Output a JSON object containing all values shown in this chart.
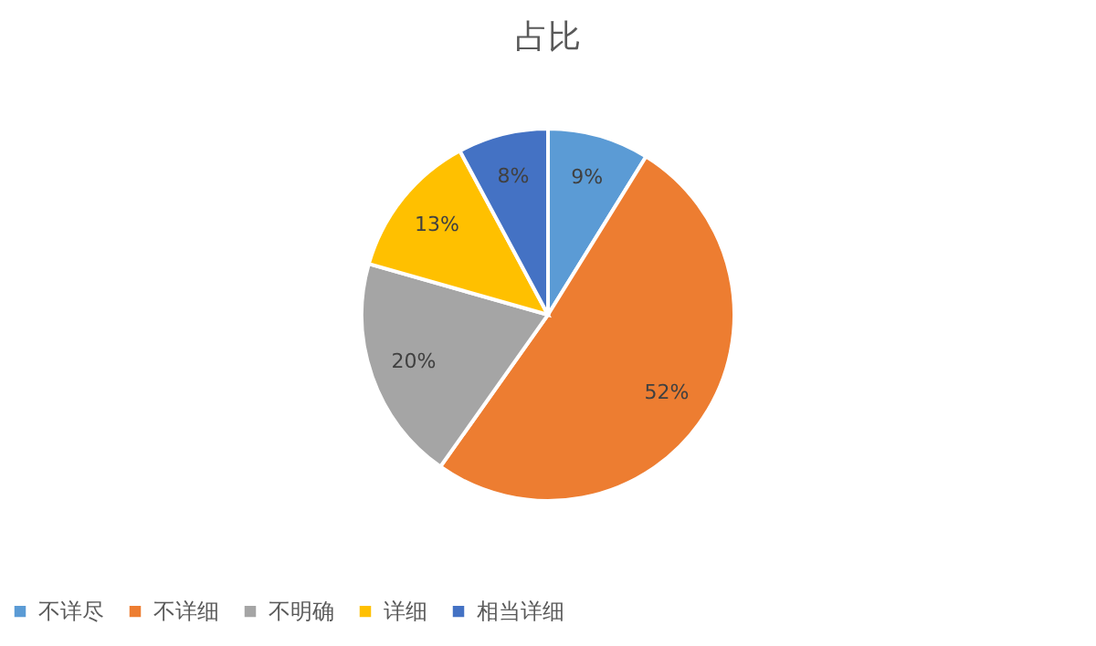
{
  "chart_data": {
    "type": "pie",
    "title": "占比",
    "categories": [
      "不详尽",
      "不详细",
      "不明确",
      "详细",
      "相当详细"
    ],
    "values": [
      9,
      52,
      20,
      13,
      8
    ],
    "colors": [
      "#5b9bd5",
      "#ed7d31",
      "#a5a5a5",
      "#ffc000",
      "#4472c4"
    ],
    "value_labels": [
      "9%",
      "52%",
      "20%",
      "13%",
      "8%"
    ],
    "legend": "bottom"
  }
}
